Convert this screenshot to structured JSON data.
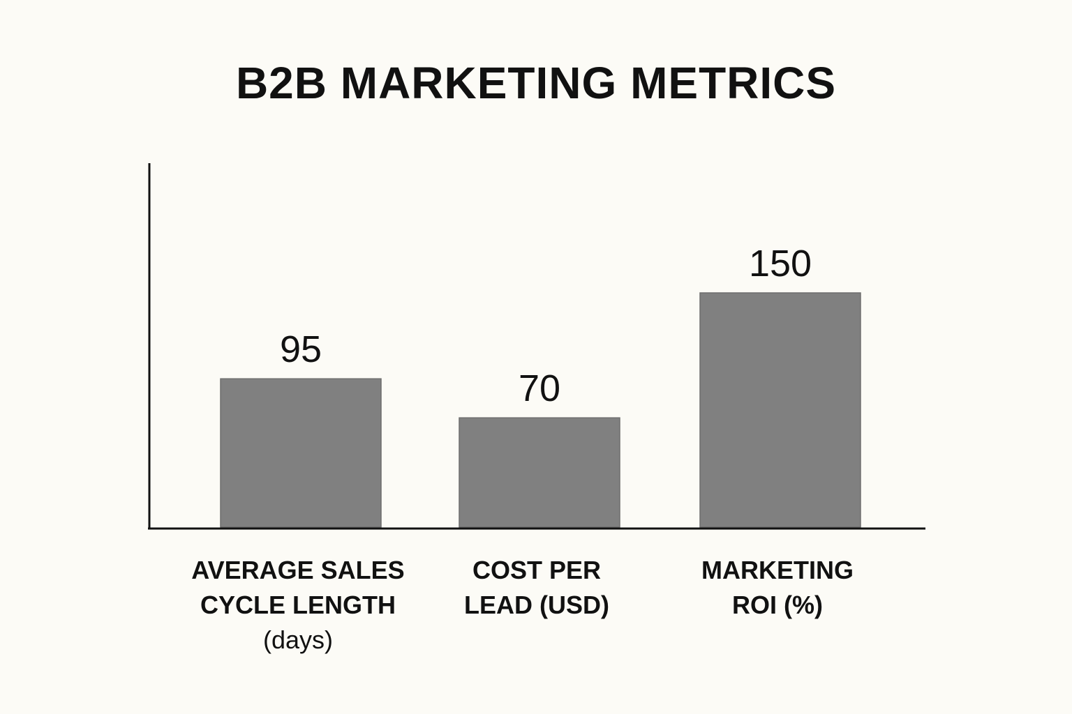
{
  "chart_data": {
    "type": "bar",
    "title": "B2B MARKETING METRICS",
    "categories": [
      [
        "AVERAGE SALES",
        "CYCLE LENGTH",
        "(days)"
      ],
      [
        "COST PER",
        "LEAD (USD)"
      ],
      [
        "MARKETING",
        "ROI (%)"
      ]
    ],
    "values": [
      95,
      70,
      150
    ],
    "value_labels": [
      "95",
      "70",
      "150"
    ],
    "xlabel": "",
    "ylabel": "",
    "ylim": [
      0,
      180
    ],
    "grid": false,
    "legend": "none",
    "colors": {
      "bar": "#808080",
      "axis": "#111111",
      "text": "#111111",
      "background": "#fcfbf6"
    }
  }
}
